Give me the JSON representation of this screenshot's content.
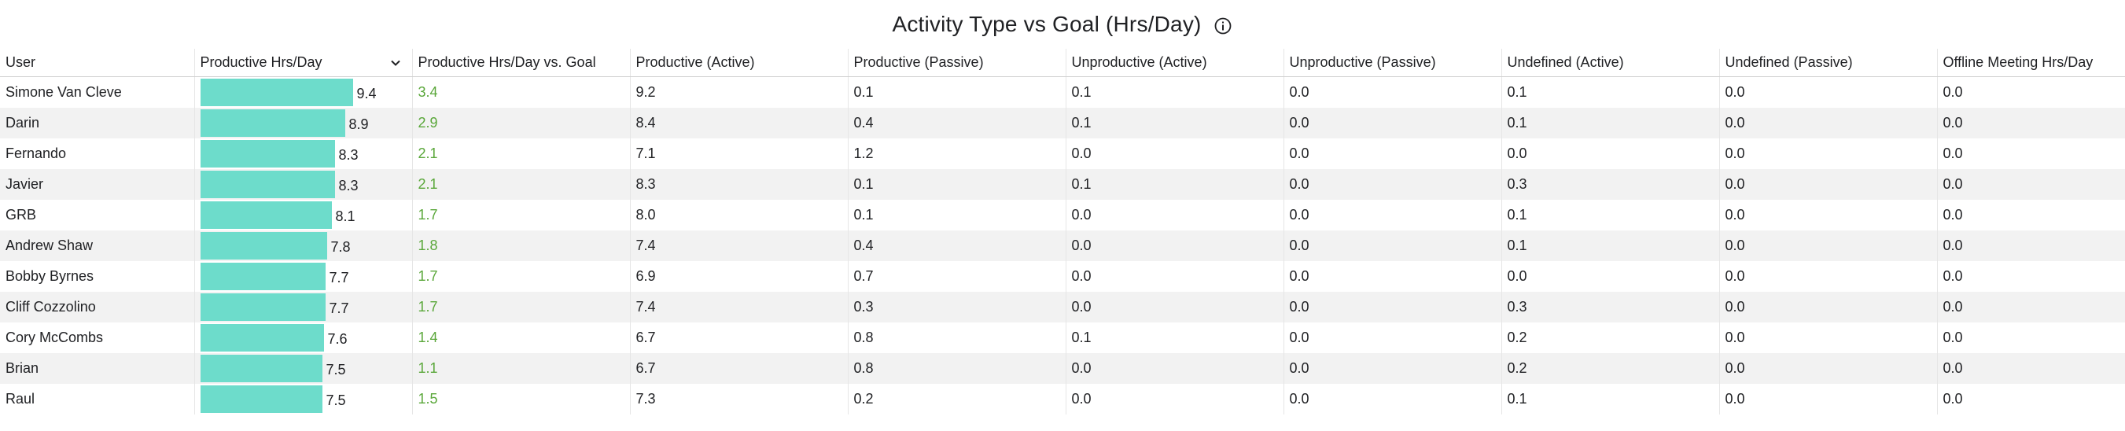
{
  "title": "Activity Type vs Goal (Hrs/Day)",
  "colors": {
    "bar": "#6ddccb",
    "positive": "#5aa73a",
    "alt_row": "#f2f2f2"
  },
  "columns": [
    "User",
    "Productive Hrs/Day",
    "Productive Hrs/Day vs. Goal",
    "Productive (Active)",
    "Productive (Passive)",
    "Unproductive (Active)",
    "Unproductive (Passive)",
    "Undefined (Active)",
    "Undefined (Passive)",
    "Offline Meeting Hrs/Day"
  ],
  "bar_max_value": 9.4,
  "rows": [
    {
      "user": "Simone Van Cleve",
      "productive": "9.4",
      "vs_goal": "3.4",
      "p_active": "9.2",
      "p_passive": "0.1",
      "u_active": "0.1",
      "u_passive": "0.0",
      "d_active": "0.1",
      "d_passive": "0.0",
      "offline": "0.0"
    },
    {
      "user": "Darin",
      "productive": "8.9",
      "vs_goal": "2.9",
      "p_active": "8.4",
      "p_passive": "0.4",
      "u_active": "0.1",
      "u_passive": "0.0",
      "d_active": "0.1",
      "d_passive": "0.0",
      "offline": "0.0"
    },
    {
      "user": "Fernando",
      "productive": "8.3",
      "vs_goal": "2.1",
      "p_active": "7.1",
      "p_passive": "1.2",
      "u_active": "0.0",
      "u_passive": "0.0",
      "d_active": "0.0",
      "d_passive": "0.0",
      "offline": "0.0"
    },
    {
      "user": "Javier",
      "productive": "8.3",
      "vs_goal": "2.1",
      "p_active": "8.3",
      "p_passive": "0.1",
      "u_active": "0.1",
      "u_passive": "0.0",
      "d_active": "0.3",
      "d_passive": "0.0",
      "offline": "0.0"
    },
    {
      "user": "GRB",
      "productive": "8.1",
      "vs_goal": "1.7",
      "p_active": "8.0",
      "p_passive": "0.1",
      "u_active": "0.0",
      "u_passive": "0.0",
      "d_active": "0.1",
      "d_passive": "0.0",
      "offline": "0.0"
    },
    {
      "user": "Andrew Shaw",
      "productive": "7.8",
      "vs_goal": "1.8",
      "p_active": "7.4",
      "p_passive": "0.4",
      "u_active": "0.0",
      "u_passive": "0.0",
      "d_active": "0.1",
      "d_passive": "0.0",
      "offline": "0.0"
    },
    {
      "user": "Bobby Byrnes",
      "productive": "7.7",
      "vs_goal": "1.7",
      "p_active": "6.9",
      "p_passive": "0.7",
      "u_active": "0.0",
      "u_passive": "0.0",
      "d_active": "0.0",
      "d_passive": "0.0",
      "offline": "0.0"
    },
    {
      "user": "Cliff Cozzolino",
      "productive": "7.7",
      "vs_goal": "1.7",
      "p_active": "7.4",
      "p_passive": "0.3",
      "u_active": "0.0",
      "u_passive": "0.0",
      "d_active": "0.3",
      "d_passive": "0.0",
      "offline": "0.0"
    },
    {
      "user": "Cory McCombs",
      "productive": "7.6",
      "vs_goal": "1.4",
      "p_active": "6.7",
      "p_passive": "0.8",
      "u_active": "0.1",
      "u_passive": "0.0",
      "d_active": "0.2",
      "d_passive": "0.0",
      "offline": "0.0"
    },
    {
      "user": "Brian",
      "productive": "7.5",
      "vs_goal": "1.1",
      "p_active": "6.7",
      "p_passive": "0.8",
      "u_active": "0.0",
      "u_passive": "0.0",
      "d_active": "0.2",
      "d_passive": "0.0",
      "offline": "0.0"
    },
    {
      "user": "Raul",
      "productive": "7.5",
      "vs_goal": "1.5",
      "p_active": "7.3",
      "p_passive": "0.2",
      "u_active": "0.0",
      "u_passive": "0.0",
      "d_active": "0.1",
      "d_passive": "0.0",
      "offline": "0.0"
    }
  ]
}
